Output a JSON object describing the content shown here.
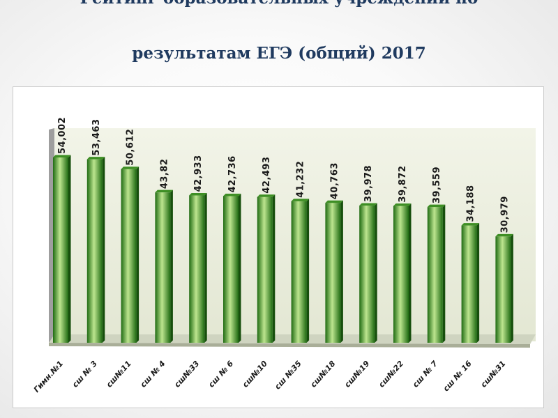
{
  "title_line1": "Рейтинг образовательных учреждений по",
  "title_line2": "результатам ЕГЭ (общий) 2017",
  "colors": {
    "bar_dark": "#1f6b12",
    "bar_light": "#bde58f",
    "bar_top": "#3e8f24",
    "plot_back": "#eef1e3",
    "floor": "#cfd4c0",
    "label": "#1a1a1a"
  },
  "chart_data": {
    "type": "bar",
    "title": "",
    "xlabel": "",
    "ylabel": "",
    "ylim": [
      0,
      54.002
    ],
    "grid": false,
    "legend": "none",
    "categories": [
      "Гимн.№1",
      "сш № 3",
      "сш№11",
      "сш № 4",
      "сш№33",
      "сш № 6",
      "сш№10",
      "сш №35",
      "сш№18",
      "сш№19",
      "сш№22",
      "сш № 7",
      "сш № 16",
      "сш№31"
    ],
    "value_labels": [
      "54,002",
      "53,463",
      "50,612",
      "43,82",
      "42,933",
      "42,736",
      "42,493",
      "41,232",
      "40,763",
      "39,978",
      "39,872",
      "39,559",
      "34,188",
      "30,979"
    ],
    "values": [
      54.002,
      53.463,
      50.612,
      43.82,
      42.933,
      42.736,
      42.493,
      41.232,
      40.763,
      39.978,
      39.872,
      39.559,
      34.188,
      30.979
    ]
  }
}
